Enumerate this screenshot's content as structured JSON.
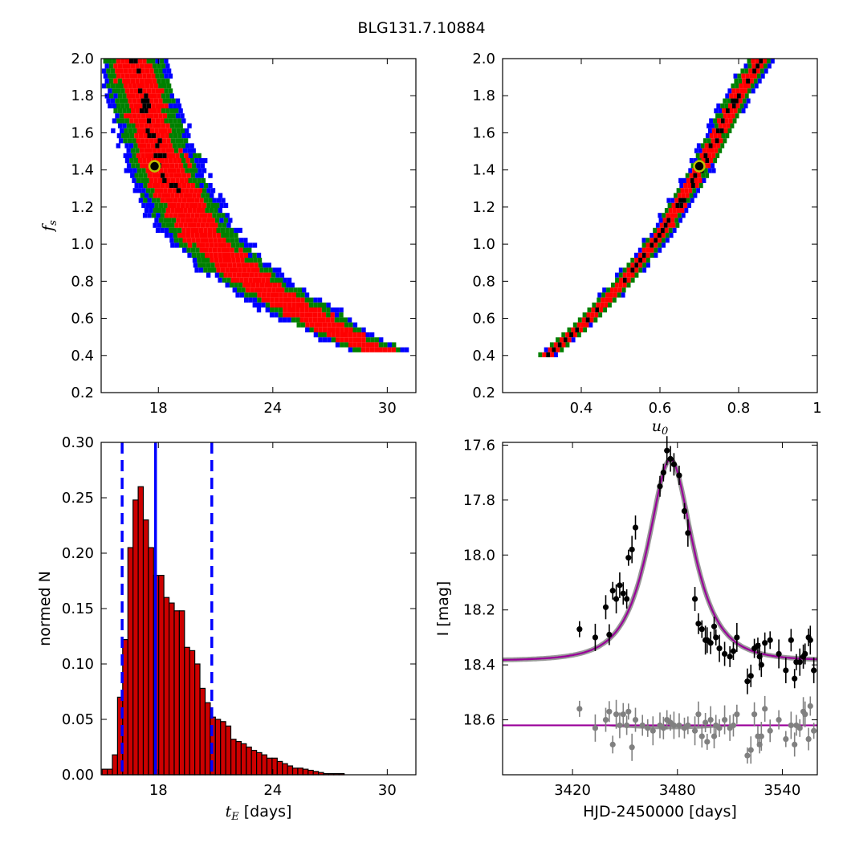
{
  "figure_title": "BLG131.7.10884",
  "colors": {
    "sigma3": "#0000ff",
    "sigma2": "#008000",
    "sigma1": "#ff0000",
    "best": "#000000",
    "marker_edge": "#bfbf00",
    "hist_fill": "#cc0000",
    "median_line": "#0000ff",
    "model": "#990099",
    "data_main": "#000000",
    "data_resid": "#808080"
  },
  "chart_data": [
    {
      "id": "tE_vs_fs",
      "type": "heatmap",
      "title": "",
      "xlabel": "",
      "ylabel": "f_s",
      "xlim": [
        15,
        31.5
      ],
      "ylim": [
        0.2,
        2.0
      ],
      "xticks": [
        18,
        24,
        30
      ],
      "yticks": [
        0.2,
        0.4,
        0.6,
        0.8,
        1.0,
        1.2,
        1.4,
        1.6,
        1.8,
        2.0
      ],
      "levels": [
        "3-sigma",
        "2-sigma",
        "1-sigma",
        "best"
      ],
      "band_center": [
        [
          16.5,
          2.0
        ],
        [
          17.5,
          1.65
        ],
        [
          18.5,
          1.35
        ],
        [
          20,
          1.08
        ],
        [
          22,
          0.88
        ],
        [
          24,
          0.74
        ],
        [
          26,
          0.62
        ],
        [
          28,
          0.5
        ],
        [
          30,
          0.42
        ]
      ],
      "best_fit": {
        "x": 17.8,
        "y": 1.42
      }
    },
    {
      "id": "u0_vs_fs",
      "type": "heatmap",
      "title": "",
      "xlabel": "u_0",
      "ylabel": "",
      "xlim": [
        0.2,
        1.0
      ],
      "ylim": [
        0.2,
        2.0
      ],
      "xticks": [
        0.4,
        0.6,
        0.8,
        1.0
      ],
      "yticks": [
        0.2,
        0.4,
        0.6,
        0.8,
        1.0,
        1.2,
        1.4,
        1.6,
        1.8,
        2.0
      ],
      "band_center": [
        [
          0.3,
          0.4
        ],
        [
          0.4,
          0.58
        ],
        [
          0.5,
          0.8
        ],
        [
          0.6,
          1.07
        ],
        [
          0.7,
          1.42
        ],
        [
          0.8,
          1.84
        ],
        [
          0.85,
          2.0
        ]
      ],
      "best_fit": {
        "x": 0.7,
        "y": 1.42
      }
    },
    {
      "id": "tE_histogram",
      "type": "bar",
      "title": "",
      "xlabel": "t_E [days]",
      "ylabel": "normed N",
      "xlim": [
        15,
        31.5
      ],
      "ylim": [
        0.0,
        0.3
      ],
      "xticks": [
        18,
        24,
        30
      ],
      "yticks": [
        0.0,
        0.05,
        0.1,
        0.15,
        0.2,
        0.25,
        0.3
      ],
      "ytick_labels": [
        "0.00",
        "0.05",
        "0.10",
        "0.15",
        "0.20",
        "0.25",
        "0.30"
      ],
      "bin_start": 15.05,
      "bin_width": 0.27,
      "values": [
        0.005,
        0.005,
        0.018,
        0.07,
        0.122,
        0.205,
        0.248,
        0.26,
        0.23,
        0.205,
        0.18,
        0.18,
        0.16,
        0.155,
        0.148,
        0.148,
        0.115,
        0.112,
        0.1,
        0.078,
        0.065,
        0.052,
        0.05,
        0.048,
        0.044,
        0.032,
        0.03,
        0.028,
        0.025,
        0.022,
        0.02,
        0.018,
        0.015,
        0.015,
        0.012,
        0.01,
        0.008,
        0.006,
        0.006,
        0.005,
        0.004,
        0.003,
        0.002,
        0.001,
        0.001,
        0.001,
        0.001
      ],
      "median": 17.85,
      "bounds": [
        16.1,
        20.8
      ]
    },
    {
      "id": "light_curve",
      "type": "scatter",
      "title": "",
      "xlabel": "HJD-2450000 [days]",
      "ylabel": "I [mag]",
      "xlim": [
        3380,
        3560
      ],
      "ylim": [
        18.8,
        17.59
      ],
      "xticks": [
        3420,
        3480,
        3540
      ],
      "yticks": [
        17.6,
        17.8,
        18.0,
        18.2,
        18.4,
        18.6
      ],
      "ytick_labels": [
        "17.6",
        "17.8",
        "18.0",
        "18.2",
        "18.4",
        "18.6"
      ],
      "model": {
        "t0": 3476,
        "tE": 17.8,
        "u0": 0.7,
        "fs": 1.42,
        "baseline_mag": 18.385
      },
      "residual_offset_mag": 18.62,
      "series": [
        {
          "kind": "data",
          "x": [
            3424,
            3433,
            3439,
            3441,
            3443,
            3445,
            3447,
            3449,
            3451,
            3452,
            3454,
            3456,
            3470,
            3472,
            3474,
            3476,
            3478,
            3481,
            3484,
            3486,
            3490,
            3492,
            3494,
            3496,
            3497,
            3499,
            3501,
            3502,
            3504,
            3507,
            3510,
            3512,
            3514,
            3520,
            3522,
            3524,
            3526,
            3527,
            3528,
            3530,
            3533,
            3538,
            3542,
            3545,
            3547,
            3548,
            3550,
            3552,
            3553,
            3555,
            3556,
            3558
          ],
          "y": [
            18.27,
            18.3,
            18.19,
            18.29,
            18.13,
            18.16,
            18.11,
            18.14,
            18.16,
            18.01,
            17.98,
            17.9,
            17.75,
            17.7,
            17.62,
            17.65,
            17.67,
            17.71,
            17.84,
            17.92,
            18.16,
            18.25,
            18.27,
            18.31,
            18.31,
            18.32,
            18.26,
            18.3,
            18.34,
            18.36,
            18.37,
            18.35,
            18.3,
            18.46,
            18.44,
            18.34,
            18.33,
            18.37,
            18.4,
            18.32,
            18.31,
            18.36,
            18.42,
            18.31,
            18.45,
            18.39,
            18.39,
            18.37,
            18.36,
            18.3,
            18.31,
            18.42
          ]
        },
        {
          "kind": "residuals",
          "x": [
            3424,
            3433,
            3439,
            3441,
            3443,
            3445,
            3447,
            3449,
            3451,
            3452,
            3454,
            3456,
            3460,
            3463,
            3466,
            3470,
            3472,
            3474,
            3476,
            3478,
            3481,
            3484,
            3486,
            3490,
            3492,
            3494,
            3496,
            3497,
            3499,
            3501,
            3502,
            3504,
            3507,
            3510,
            3512,
            3514,
            3520,
            3522,
            3524,
            3526,
            3527,
            3528,
            3530,
            3533,
            3538,
            3542,
            3545,
            3547,
            3548,
            3550,
            3552,
            3553,
            3555,
            3556,
            3558
          ],
          "y": [
            18.56,
            18.63,
            18.6,
            18.57,
            18.69,
            18.58,
            18.62,
            18.58,
            18.62,
            18.57,
            18.7,
            18.6,
            18.62,
            18.63,
            18.64,
            18.62,
            18.63,
            18.6,
            18.61,
            18.62,
            18.62,
            18.63,
            18.62,
            18.64,
            18.58,
            18.66,
            18.61,
            18.68,
            18.6,
            18.66,
            18.62,
            18.63,
            18.6,
            18.63,
            18.62,
            18.58,
            18.73,
            18.71,
            18.58,
            18.66,
            18.69,
            18.66,
            18.56,
            18.64,
            18.6,
            18.67,
            18.62,
            18.69,
            18.62,
            18.63,
            18.57,
            18.58,
            18.67,
            18.55,
            18.64
          ]
        }
      ]
    }
  ]
}
